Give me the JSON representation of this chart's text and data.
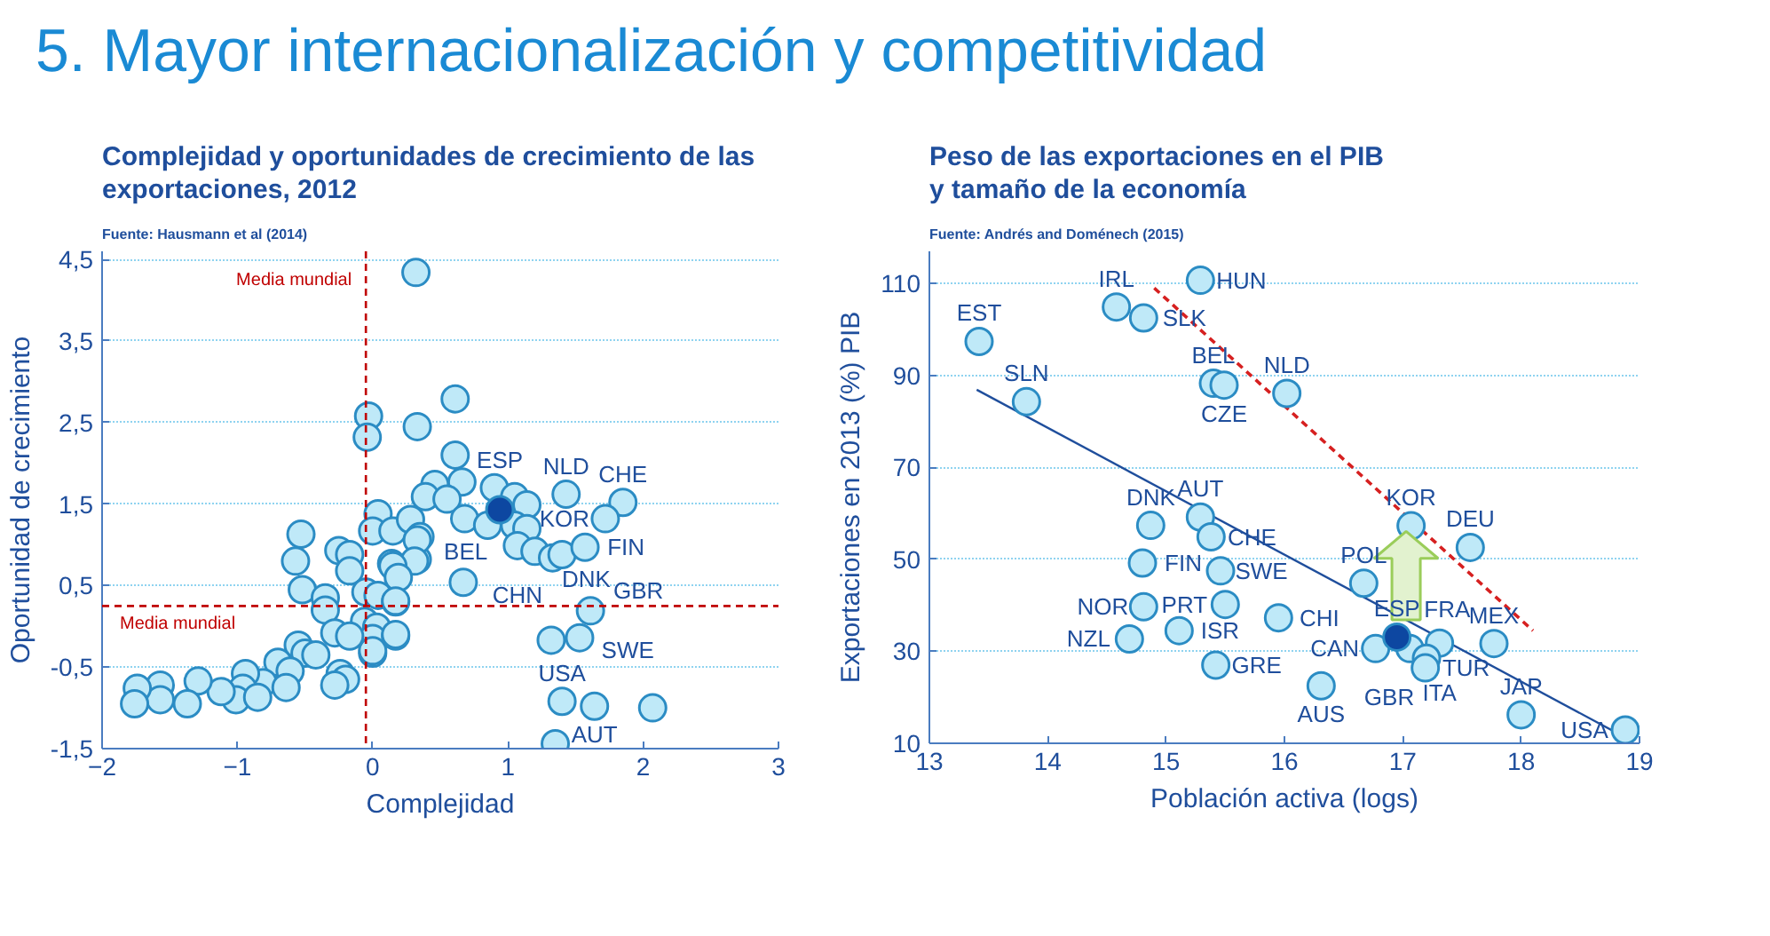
{
  "chart_data": [
    {
      "type": "scatter",
      "title": "Complejidad y oportunidades de crecimiento de las\nexportaciones, 2012",
      "subtitle": "Fuente: Hausmann et al (2014)",
      "xlabel": "Complejidad",
      "ylabel": "Oportunidad de crecimiento",
      "xlim": [
        -2,
        3
      ],
      "ylim": [
        -1.5,
        4.6
      ],
      "xticks": [
        -2,
        -1,
        0,
        1,
        2,
        3
      ],
      "yticks": [
        {
          "value": -1.5,
          "label": "-1,5"
        },
        {
          "value": -0.5,
          "label": "-0,5"
        },
        {
          "value": 0.5,
          "label": "0,5"
        },
        {
          "value": 1.5,
          "label": "1,5"
        },
        {
          "value": 2.5,
          "label": "2,5"
        },
        {
          "value": 3.5,
          "label": "3,5"
        },
        {
          "value": 4.5,
          "label": "4,5"
        }
      ],
      "grid": "y",
      "marker": "circle",
      "series": [
        {
          "color": "#bfe9f8",
          "x": [
            0.32,
            -0.03,
            -0.04,
            0.33,
            -0.53,
            -0.57,
            -0.52,
            -0.25,
            -0.17,
            -0.17,
            -0.35,
            -0.35,
            0.04,
            0.0,
            0.15,
            0.28,
            0.35,
            0.14,
            0.33,
            -0.05,
            0.04,
            0.17,
            -0.06,
            0.03,
            0.0,
            0.0,
            0.17,
            -0.28,
            -0.17,
            -0.55,
            -0.5,
            -0.42,
            -0.24,
            -0.2,
            -0.28,
            -0.7,
            -0.61,
            -0.81,
            -0.64,
            -0.94,
            -0.96,
            -1.01,
            -1.12,
            -0.85,
            -1.29,
            -1.37,
            -1.57,
            -1.57,
            -1.74,
            -1.76,
            0.61,
            0.61,
            0.46,
            0.66,
            0.39,
            0.55,
            0.9,
            1.05,
            1.14,
            1.43,
            1.85,
            1.72,
            0.68,
            0.85,
            1.05,
            1.14,
            1.07,
            1.2,
            1.33,
            1.4,
            1.57,
            0.33,
            0.31,
            0.15,
            0.19,
            0.67,
            0.17,
            1.61,
            1.32,
            1.53,
            0.17,
            0.0,
            1.4,
            1.64,
            2.07,
            1.35
          ],
          "values": [
            4.34,
            2.58,
            2.32,
            2.45,
            1.13,
            0.8,
            0.45,
            0.93,
            0.88,
            0.68,
            0.35,
            0.2,
            1.38,
            1.17,
            1.17,
            1.31,
            1.1,
            0.77,
            0.82,
            0.42,
            0.38,
            0.3,
            0.06,
            -0.01,
            -0.15,
            -0.33,
            -0.12,
            -0.08,
            -0.12,
            -0.23,
            -0.33,
            -0.35,
            -0.58,
            -0.65,
            -0.72,
            -0.44,
            -0.55,
            -0.69,
            -0.75,
            -0.58,
            -0.76,
            -0.9,
            -0.8,
            -0.87,
            -0.67,
            -0.95,
            -0.72,
            -0.9,
            -0.76,
            -0.95,
            2.79,
            2.1,
            1.74,
            1.77,
            1.59,
            1.56,
            1.7,
            1.59,
            1.49,
            1.62,
            1.52,
            1.32,
            1.32,
            1.24,
            1.24,
            1.2,
            0.99,
            0.92,
            0.84,
            0.88,
            0.97,
            1.06,
            0.8,
            0.74,
            0.6,
            0.54,
            0.31,
            0.19,
            -0.17,
            -0.14,
            -0.1,
            -0.3,
            -0.92,
            -0.98,
            -1.0,
            -1.44
          ]
        },
        {
          "color": "#0d47a1",
          "x": [
            0.94
          ],
          "values": [
            1.43
          ]
        }
      ],
      "ref_lines": [
        {
          "axis": "x",
          "value": -0.05,
          "label": "Media mundial",
          "color": "#c00000",
          "line_style": "dashed"
        },
        {
          "axis": "y",
          "value": 0.25,
          "label": "Media mundial",
          "color": "#c00000",
          "line_style": "dashed"
        }
      ],
      "annotations": [
        "5. Mayor internacionalización y competitividad",
        {
          "text": "NLD",
          "x": 1.43,
          "y": 1.62
        },
        {
          "text": "ESP",
          "x": 0.94,
          "y": 1.43
        },
        {
          "text": "CHN",
          "x": 1.07,
          "y": 0.99
        },
        {
          "text": "BEL",
          "x": 1.2,
          "y": 0.92
        },
        {
          "text": "CHE",
          "x": 1.85,
          "y": 1.52
        },
        {
          "text": "KOR",
          "x": 1.72,
          "y": 1.32
        },
        {
          "text": "FIN",
          "x": 1.57,
          "y": 0.97
        },
        {
          "text": "GBR",
          "x": 1.4,
          "y": 0.88
        },
        {
          "text": "DNK",
          "x": 1.33,
          "y": 0.84
        },
        {
          "text": "SWE",
          "x": 1.61,
          "y": 0.19
        },
        {
          "text": "USA",
          "x": 1.4,
          "y": -0.92
        },
        {
          "text": "AUT",
          "x": 1.64,
          "y": -0.98
        }
      ]
    },
    {
      "type": "scatter",
      "title": "Peso de las exportaciones en el PIB\ny tamaño de la economía",
      "subtitle": "Fuente: Andrés and Doménech (2015)",
      "xlabel": "Población activa (logs)",
      "ylabel": "Exportaciones en 2013 (%) PIB",
      "xlim": [
        13,
        19
      ],
      "ylim": [
        10,
        117
      ],
      "xticks": [
        13,
        14,
        15,
        16,
        17,
        18,
        19
      ],
      "yticks": [
        10,
        30,
        50,
        70,
        90,
        110
      ],
      "grid": "y",
      "marker": "circle",
      "series": [
        {
          "type": "line",
          "color": "#1f4e9c",
          "line_style": "solid",
          "marker": "none",
          "x": [
            13.4,
            18.9
          ],
          "values": [
            86.9,
            11
          ]
        },
        {
          "type": "line",
          "color": "#d62020",
          "line_style": "dashed",
          "marker": "none",
          "x": [
            14.9,
            18.1
          ],
          "values": [
            109,
            34.5
          ]
        },
        {
          "color": "#bfe9f8",
          "x": [
            13.42,
            13.82,
            14.58,
            14.81,
            15.29,
            15.4,
            15.49,
            15.29,
            14.87,
            15.38,
            14.8,
            15.46,
            14.81,
            15.5,
            14.69,
            15.11,
            15.42,
            15.95,
            16.02,
            17.07,
            17.57,
            16.67,
            16.77,
            17.06,
            17.31,
            17.2,
            17.19,
            17.77,
            16.31,
            18.0,
            18.88
          ],
          "values": [
            97.4,
            84.3,
            104.9,
            102.5,
            110.7,
            88.3,
            87.9,
            59.2,
            57.4,
            54.9,
            49.2,
            47.5,
            39.7,
            40.2,
            32.7,
            34.5,
            27.0,
            37.3,
            86.1,
            57.3,
            52.6,
            44.8,
            30.6,
            30.6,
            31.8,
            28.5,
            26.4,
            31.7,
            22.5,
            16.2,
            12.9
          ]
        },
        {
          "color": "#0d47a1",
          "x": [
            16.95
          ],
          "values": [
            33.1
          ]
        }
      ],
      "annotations": [
        {
          "text": "EST",
          "x": 13.42,
          "y": 97.4
        },
        {
          "text": "SLN",
          "x": 13.82,
          "y": 84.3
        },
        {
          "text": "IRL",
          "x": 14.58,
          "y": 104.9
        },
        {
          "text": "SLK",
          "x": 14.81,
          "y": 102.5
        },
        {
          "text": "HUN",
          "x": 15.29,
          "y": 110.7
        },
        {
          "text": "BEL",
          "x": 15.4,
          "y": 88.3
        },
        {
          "text": "CZE",
          "x": 15.49,
          "y": 87.9
        },
        {
          "text": "NLD",
          "x": 16.02,
          "y": 86.1
        },
        {
          "text": "AUT",
          "x": 15.29,
          "y": 59.2
        },
        {
          "text": "DNK",
          "x": 14.87,
          "y": 57.4
        },
        {
          "text": "CHE",
          "x": 15.38,
          "y": 54.9
        },
        {
          "text": "FIN",
          "x": 14.8,
          "y": 49.2
        },
        {
          "text": "SWE",
          "x": 15.46,
          "y": 47.5
        },
        {
          "text": "NOR",
          "x": 14.81,
          "y": 39.7
        },
        {
          "text": "PRT",
          "x": 15.5,
          "y": 40.2
        },
        {
          "text": "NZL",
          "x": 14.69,
          "y": 32.7
        },
        {
          "text": "ISR",
          "x": 15.11,
          "y": 34.5
        },
        {
          "text": "GRE",
          "x": 15.42,
          "y": 27.0
        },
        {
          "text": "CHI",
          "x": 15.95,
          "y": 37.3
        },
        {
          "text": "KOR",
          "x": 17.07,
          "y": 57.3
        },
        {
          "text": "DEU",
          "x": 17.57,
          "y": 52.6
        },
        {
          "text": "POL",
          "x": 16.67,
          "y": 44.8
        },
        {
          "text": "ESP",
          "x": 16.95,
          "y": 33.1
        },
        {
          "text": "CAN",
          "x": 16.77,
          "y": 30.6
        },
        {
          "text": "ITA",
          "x": 17.31,
          "y": 31.8
        },
        {
          "text": "GBR",
          "x": 17.2,
          "y": 28.5
        },
        {
          "text": "FRA",
          "x": 17.06,
          "y": 30.6
        },
        {
          "text": "TUR",
          "x": 17.19,
          "y": 26.4
        },
        {
          "text": "MEX",
          "x": 17.77,
          "y": 31.7
        },
        {
          "text": "AUS",
          "x": 16.31,
          "y": 22.5
        },
        {
          "text": "JAP",
          "x": 18.0,
          "y": 16.2
        },
        {
          "text": "USA",
          "x": 18.88,
          "y": 12.9
        }
      ]
    }
  ]
}
